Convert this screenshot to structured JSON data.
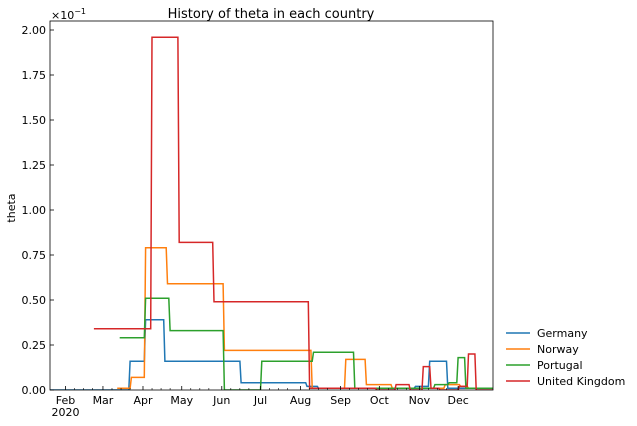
{
  "chart_data": {
    "type": "line",
    "title": "History of theta in each country",
    "xlabel": "",
    "ylabel": "theta",
    "y_scale_label": "×10",
    "y_scale_exponent": "−1",
    "ylim": [
      0,
      2.05
    ],
    "yticks": [
      0.0,
      0.25,
      0.5,
      0.75,
      1.0,
      1.25,
      1.5,
      1.75,
      2.0
    ],
    "ytick_labels": [
      "0.00",
      "0.25",
      "0.50",
      "0.75",
      "1.00",
      "1.25",
      "1.50",
      "1.75",
      "2.00"
    ],
    "xlim": [
      "2020-01-20",
      "2020-12-28"
    ],
    "xticks": [
      {
        "date": "2020-02-01",
        "label": "Feb",
        "sublabel": "2020"
      },
      {
        "date": "2020-03-01",
        "label": "Mar",
        "sublabel": ""
      },
      {
        "date": "2020-04-01",
        "label": "Apr",
        "sublabel": ""
      },
      {
        "date": "2020-05-01",
        "label": "May",
        "sublabel": ""
      },
      {
        "date": "2020-06-01",
        "label": "Jun",
        "sublabel": ""
      },
      {
        "date": "2020-07-01",
        "label": "Jul",
        "sublabel": ""
      },
      {
        "date": "2020-08-01",
        "label": "Aug",
        "sublabel": ""
      },
      {
        "date": "2020-09-01",
        "label": "Sep",
        "sublabel": ""
      },
      {
        "date": "2020-10-01",
        "label": "Oct",
        "sublabel": ""
      },
      {
        "date": "2020-11-01",
        "label": "Nov",
        "sublabel": ""
      },
      {
        "date": "2020-12-01",
        "label": "Dec",
        "sublabel": ""
      }
    ],
    "grid": false,
    "legend_position": "outside-bottom-right",
    "series": [
      {
        "name": "Germany",
        "color": "#1f77b4",
        "x": [
          "2020-01-20",
          "2020-03-21",
          "2020-03-22",
          "2020-04-02",
          "2020-04-03",
          "2020-04-17",
          "2020-04-18",
          "2020-06-15",
          "2020-06-16",
          "2020-08-05",
          "2020-08-06",
          "2020-08-14",
          "2020-08-15",
          "2020-10-28",
          "2020-10-29",
          "2020-11-08",
          "2020-11-09",
          "2020-11-22",
          "2020-11-23",
          "2020-12-28"
        ],
        "y": [
          0.0,
          0.0,
          0.16,
          0.16,
          0.39,
          0.39,
          0.16,
          0.16,
          0.04,
          0.04,
          0.02,
          0.02,
          0.01,
          0.01,
          0.02,
          0.02,
          0.16,
          0.16,
          0.01,
          0.01
        ]
      },
      {
        "name": "Norway",
        "color": "#ff7f0e",
        "x": [
          "2020-03-12",
          "2020-03-22",
          "2020-03-23",
          "2020-04-02",
          "2020-04-03",
          "2020-04-19",
          "2020-04-20",
          "2020-06-02",
          "2020-06-03",
          "2020-08-09",
          "2020-08-10",
          "2020-09-04",
          "2020-09-05",
          "2020-09-20",
          "2020-09-21",
          "2020-10-10",
          "2020-10-11",
          "2020-11-20",
          "2020-11-21",
          "2020-12-02",
          "2020-12-03",
          "2020-12-08",
          "2020-12-09",
          "2020-12-28"
        ],
        "y": [
          0.01,
          0.01,
          0.07,
          0.07,
          0.79,
          0.79,
          0.59,
          0.59,
          0.22,
          0.22,
          0.01,
          0.01,
          0.17,
          0.17,
          0.03,
          0.03,
          0.01,
          0.01,
          0.03,
          0.03,
          0.02,
          0.02,
          0.01,
          0.01
        ]
      },
      {
        "name": "Portugal",
        "color": "#2ca02c",
        "x": [
          "2020-03-14",
          "2020-04-02",
          "2020-04-03",
          "2020-04-21",
          "2020-04-22",
          "2020-06-02",
          "2020-06-03",
          "2020-07-01",
          "2020-07-02",
          "2020-08-10",
          "2020-08-11",
          "2020-09-11",
          "2020-09-12",
          "2020-11-12",
          "2020-11-13",
          "2020-11-23",
          "2020-11-24",
          "2020-11-30",
          "2020-12-01",
          "2020-12-06",
          "2020-12-07",
          "2020-12-28"
        ],
        "y": [
          0.29,
          0.29,
          0.51,
          0.51,
          0.33,
          0.33,
          0.0,
          0.0,
          0.16,
          0.16,
          0.21,
          0.21,
          0.01,
          0.01,
          0.03,
          0.03,
          0.04,
          0.04,
          0.18,
          0.18,
          0.01,
          0.01
        ]
      },
      {
        "name": "United Kingdom",
        "color": "#d62728",
        "x": [
          "2020-02-23",
          "2020-04-07",
          "2020-04-08",
          "2020-04-28",
          "2020-04-29",
          "2020-05-25",
          "2020-05-26",
          "2020-08-07",
          "2020-08-08",
          "2020-09-28",
          "2020-09-29",
          "2020-10-13",
          "2020-10-14",
          "2020-10-24",
          "2020-10-25",
          "2020-11-03",
          "2020-11-04",
          "2020-11-09",
          "2020-11-10",
          "2020-11-16",
          "2020-11-17",
          "2020-12-01",
          "2020-12-02",
          "2020-12-08",
          "2020-12-09",
          "2020-12-14",
          "2020-12-15",
          "2020-12-28"
        ],
        "y": [
          0.34,
          0.34,
          1.96,
          1.96,
          0.82,
          0.82,
          0.49,
          0.49,
          0.01,
          0.01,
          0.0,
          0.0,
          0.03,
          0.03,
          0.0,
          0.0,
          0.13,
          0.13,
          0.01,
          0.01,
          0.0,
          0.0,
          0.02,
          0.02,
          0.2,
          0.2,
          0.0,
          0.0
        ]
      }
    ]
  }
}
